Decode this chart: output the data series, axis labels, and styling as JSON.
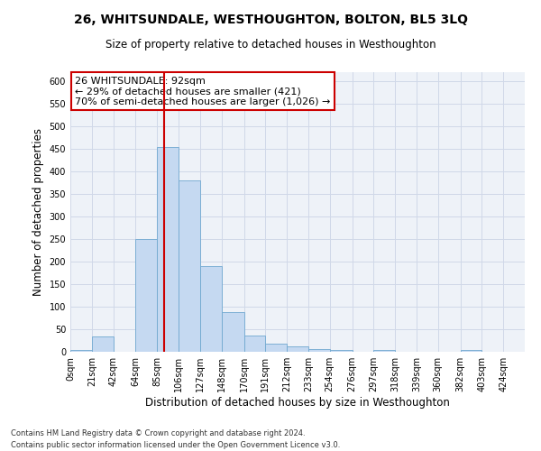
{
  "title": "26, WHITSUNDALE, WESTHOUGHTON, BOLTON, BL5 3LQ",
  "subtitle": "Size of property relative to detached houses in Westhoughton",
  "xlabel": "Distribution of detached houses by size in Westhoughton",
  "ylabel": "Number of detached properties",
  "bin_edges": [
    0,
    21,
    42,
    64,
    85,
    106,
    127,
    148,
    170,
    191,
    212,
    233,
    254,
    276,
    297,
    318,
    339,
    360,
    382,
    403,
    424,
    445
  ],
  "bar_heights": [
    5,
    35,
    0,
    250,
    455,
    380,
    190,
    88,
    37,
    18,
    13,
    7,
    5,
    0,
    5,
    0,
    0,
    0,
    5,
    0,
    0
  ],
  "bar_color": "#c5d9f1",
  "bar_edge_color": "#6fa8d0",
  "grid_color": "#d0d8e8",
  "background_color": "#eef2f8",
  "vline_x": 92,
  "vline_color": "#cc0000",
  "annotation_line1": "26 WHITSUNDALE: 92sqm",
  "annotation_line2": "← 29% of detached houses are smaller (421)",
  "annotation_line3": "70% of semi-detached houses are larger (1,026) →",
  "annotation_box_color": "#ffffff",
  "annotation_edge_color": "#cc0000",
  "ylim": [
    0,
    620
  ],
  "footnote1": "Contains HM Land Registry data © Crown copyright and database right 2024.",
  "footnote2": "Contains public sector information licensed under the Open Government Licence v3.0.",
  "tick_labels": [
    "0sqm",
    "21sqm",
    "42sqm",
    "64sqm",
    "85sqm",
    "106sqm",
    "127sqm",
    "148sqm",
    "170sqm",
    "191sqm",
    "212sqm",
    "233sqm",
    "254sqm",
    "276sqm",
    "297sqm",
    "318sqm",
    "339sqm",
    "360sqm",
    "382sqm",
    "403sqm",
    "424sqm"
  ],
  "yticks": [
    0,
    50,
    100,
    150,
    200,
    250,
    300,
    350,
    400,
    450,
    500,
    550,
    600
  ],
  "title_fontsize": 10,
  "subtitle_fontsize": 8.5,
  "ylabel_fontsize": 8.5,
  "xlabel_fontsize": 8.5,
  "tick_fontsize": 7,
  "annotation_fontsize": 8,
  "footnote_fontsize": 6
}
